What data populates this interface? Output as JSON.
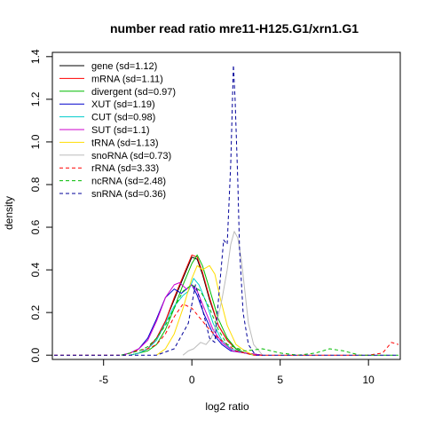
{
  "chart_data": {
    "type": "line",
    "title": "number read ratio mre11-H125.G1/xrn1.G1",
    "xlabel": "log2 ratio",
    "ylabel": "density",
    "xlim": [
      -7.9,
      11.8
    ],
    "ylim": [
      -0.02,
      1.42
    ],
    "x_ticks": [
      -5,
      0,
      5,
      10
    ],
    "y_ticks": [
      0.0,
      0.2,
      0.4,
      0.6,
      0.8,
      1.0,
      1.2,
      1.4
    ],
    "x_tick_labels": [
      "-5",
      "0",
      "5",
      "10"
    ],
    "y_tick_labels": [
      "0.0",
      "0.2",
      "0.4",
      "0.6",
      "0.8",
      "1.0",
      "1.2",
      "1.4"
    ],
    "grid": false,
    "legend_position": "top-left",
    "series": [
      {
        "name": "gene (sd=1.12)",
        "color": "#000000",
        "dash": "solid",
        "points": [
          [
            -3.5,
            0.0
          ],
          [
            -3.0,
            0.01
          ],
          [
            -2.5,
            0.03
          ],
          [
            -2.0,
            0.08
          ],
          [
            -1.5,
            0.16
          ],
          [
            -1.0,
            0.26
          ],
          [
            -0.5,
            0.36
          ],
          [
            0.0,
            0.46
          ],
          [
            0.3,
            0.45
          ],
          [
            0.6,
            0.38
          ],
          [
            1.0,
            0.26
          ],
          [
            1.5,
            0.14
          ],
          [
            2.0,
            0.07
          ],
          [
            2.5,
            0.03
          ],
          [
            3.0,
            0.01
          ],
          [
            4.0,
            0.0
          ]
        ]
      },
      {
        "name": "mRNA (sd=1.11)",
        "color": "#ff0000",
        "dash": "solid",
        "points": [
          [
            -3.5,
            0.0
          ],
          [
            -3.0,
            0.01
          ],
          [
            -2.5,
            0.03
          ],
          [
            -2.0,
            0.08
          ],
          [
            -1.5,
            0.16
          ],
          [
            -1.0,
            0.27
          ],
          [
            -0.5,
            0.37
          ],
          [
            0.0,
            0.47
          ],
          [
            0.3,
            0.46
          ],
          [
            0.6,
            0.39
          ],
          [
            1.0,
            0.27
          ],
          [
            1.5,
            0.14
          ],
          [
            2.0,
            0.07
          ],
          [
            2.5,
            0.03
          ],
          [
            3.0,
            0.01
          ],
          [
            4.0,
            0.0
          ]
        ]
      },
      {
        "name": "divergent (sd=0.97)",
        "color": "#00bb00",
        "dash": "solid",
        "points": [
          [
            -3.5,
            0.0
          ],
          [
            -3.0,
            0.01
          ],
          [
            -2.5,
            0.02
          ],
          [
            -2.0,
            0.05
          ],
          [
            -1.5,
            0.12
          ],
          [
            -1.0,
            0.22
          ],
          [
            -0.5,
            0.33
          ],
          [
            0.0,
            0.43
          ],
          [
            0.3,
            0.47
          ],
          [
            0.6,
            0.42
          ],
          [
            1.0,
            0.31
          ],
          [
            1.5,
            0.17
          ],
          [
            2.0,
            0.08
          ],
          [
            2.5,
            0.03
          ],
          [
            3.0,
            0.01
          ],
          [
            3.5,
            0.0
          ]
        ]
      },
      {
        "name": "XUT (sd=1.19)",
        "color": "#0000cc",
        "dash": "solid",
        "points": [
          [
            -4.0,
            0.0
          ],
          [
            -3.5,
            0.01
          ],
          [
            -3.0,
            0.03
          ],
          [
            -2.5,
            0.08
          ],
          [
            -2.0,
            0.17
          ],
          [
            -1.5,
            0.27
          ],
          [
            -1.0,
            0.31
          ],
          [
            -0.6,
            0.29
          ],
          [
            -0.3,
            0.31
          ],
          [
            0.0,
            0.33
          ],
          [
            0.3,
            0.28
          ],
          [
            0.7,
            0.19
          ],
          [
            1.2,
            0.1
          ],
          [
            1.7,
            0.05
          ],
          [
            2.2,
            0.02
          ],
          [
            3.0,
            0.01
          ],
          [
            4.0,
            0.0
          ]
        ]
      },
      {
        "name": "CUT (sd=0.98)",
        "color": "#00cccc",
        "dash": "solid",
        "points": [
          [
            -3.5,
            0.0
          ],
          [
            -3.0,
            0.01
          ],
          [
            -2.5,
            0.03
          ],
          [
            -2.0,
            0.07
          ],
          [
            -1.5,
            0.15
          ],
          [
            -1.0,
            0.23
          ],
          [
            -0.5,
            0.28
          ],
          [
            -0.2,
            0.3
          ],
          [
            0.1,
            0.36
          ],
          [
            0.4,
            0.33
          ],
          [
            0.8,
            0.25
          ],
          [
            1.2,
            0.15
          ],
          [
            1.7,
            0.07
          ],
          [
            2.2,
            0.03
          ],
          [
            3.0,
            0.01
          ],
          [
            3.5,
            0.0
          ]
        ]
      },
      {
        "name": "SUT (sd=1.1)",
        "color": "#cc00cc",
        "dash": "solid",
        "points": [
          [
            -4.0,
            0.0
          ],
          [
            -3.5,
            0.01
          ],
          [
            -3.0,
            0.03
          ],
          [
            -2.5,
            0.07
          ],
          [
            -2.0,
            0.16
          ],
          [
            -1.5,
            0.27
          ],
          [
            -1.0,
            0.33
          ],
          [
            -0.7,
            0.34
          ],
          [
            -0.3,
            0.31
          ],
          [
            0.0,
            0.33
          ],
          [
            0.3,
            0.3
          ],
          [
            0.7,
            0.22
          ],
          [
            1.2,
            0.12
          ],
          [
            1.7,
            0.06
          ],
          [
            2.3,
            0.02
          ],
          [
            3.0,
            0.01
          ],
          [
            4.0,
            0.0
          ]
        ]
      },
      {
        "name": "tRNA (sd=1.13)",
        "color": "#ffdd00",
        "dash": "solid",
        "points": [
          [
            -2.0,
            0.0
          ],
          [
            -1.5,
            0.03
          ],
          [
            -1.0,
            0.1
          ],
          [
            -0.5,
            0.22
          ],
          [
            0.0,
            0.36
          ],
          [
            0.3,
            0.42
          ],
          [
            0.6,
            0.4
          ],
          [
            1.0,
            0.42
          ],
          [
            1.3,
            0.38
          ],
          [
            1.6,
            0.27
          ],
          [
            2.0,
            0.14
          ],
          [
            2.5,
            0.05
          ],
          [
            3.0,
            0.02
          ],
          [
            3.5,
            0.0
          ]
        ]
      },
      {
        "name": "snoRNA (sd=0.73)",
        "color": "#bbbbbb",
        "dash": "solid",
        "points": [
          [
            -0.5,
            0.0
          ],
          [
            -0.2,
            0.02
          ],
          [
            0.1,
            0.03
          ],
          [
            0.5,
            0.06
          ],
          [
            0.8,
            0.05
          ],
          [
            1.1,
            0.08
          ],
          [
            1.4,
            0.15
          ],
          [
            1.7,
            0.26
          ],
          [
            2.0,
            0.4
          ],
          [
            2.2,
            0.52
          ],
          [
            2.4,
            0.58
          ],
          [
            2.6,
            0.55
          ],
          [
            2.8,
            0.45
          ],
          [
            3.0,
            0.3
          ],
          [
            3.2,
            0.15
          ],
          [
            3.5,
            0.05
          ],
          [
            4.0,
            0.0
          ]
        ]
      },
      {
        "name": "rRNA (sd=3.33)",
        "color": "#ff0000",
        "dash": "dashed",
        "points": [
          [
            -7.8,
            0.0
          ],
          [
            -3.8,
            0.0
          ],
          [
            -3.2,
            0.02
          ],
          [
            -2.5,
            0.03
          ],
          [
            -2.0,
            0.05
          ],
          [
            -1.5,
            0.1
          ],
          [
            -1.0,
            0.18
          ],
          [
            -0.5,
            0.24
          ],
          [
            0.0,
            0.22
          ],
          [
            0.5,
            0.17
          ],
          [
            1.0,
            0.12
          ],
          [
            1.5,
            0.08
          ],
          [
            2.0,
            0.05
          ],
          [
            2.5,
            0.02
          ],
          [
            3.5,
            0.0
          ],
          [
            10.0,
            0.0
          ],
          [
            10.8,
            0.01
          ],
          [
            11.3,
            0.06
          ],
          [
            11.7,
            0.05
          ]
        ]
      },
      {
        "name": "ncRNA (sd=2.48)",
        "color": "#00bb00",
        "dash": "dashed",
        "points": [
          [
            -4.0,
            0.0
          ],
          [
            -3.0,
            0.02
          ],
          [
            -2.5,
            0.04
          ],
          [
            -2.0,
            0.08
          ],
          [
            -1.5,
            0.14
          ],
          [
            -1.0,
            0.22
          ],
          [
            -0.5,
            0.3
          ],
          [
            0.0,
            0.33
          ],
          [
            0.5,
            0.3
          ],
          [
            1.0,
            0.22
          ],
          [
            1.5,
            0.12
          ],
          [
            2.0,
            0.05
          ],
          [
            3.0,
            0.02
          ],
          [
            4.0,
            0.03
          ],
          [
            5.0,
            0.01
          ],
          [
            6.0,
            0.0
          ],
          [
            7.0,
            0.01
          ],
          [
            7.8,
            0.03
          ],
          [
            8.6,
            0.02
          ],
          [
            9.5,
            0.0
          ],
          [
            11.7,
            0.0
          ]
        ]
      },
      {
        "name": "snRNA (sd=0.36)",
        "color": "#000099",
        "dash": "dashed",
        "points": [
          [
            -7.8,
            0.0
          ],
          [
            -2.0,
            0.0
          ],
          [
            -1.0,
            0.03
          ],
          [
            -0.2,
            0.15
          ],
          [
            0.2,
            0.33
          ],
          [
            0.5,
            0.25
          ],
          [
            1.0,
            0.08
          ],
          [
            1.3,
            0.06
          ],
          [
            1.6,
            0.35
          ],
          [
            1.8,
            0.54
          ],
          [
            2.0,
            0.52
          ],
          [
            2.2,
            0.9
          ],
          [
            2.35,
            1.36
          ],
          [
            2.45,
            1.2
          ],
          [
            2.6,
            0.82
          ],
          [
            2.7,
            0.5
          ],
          [
            2.9,
            0.2
          ],
          [
            3.2,
            0.05
          ],
          [
            3.6,
            0.0
          ],
          [
            11.7,
            0.0
          ]
        ]
      }
    ]
  }
}
